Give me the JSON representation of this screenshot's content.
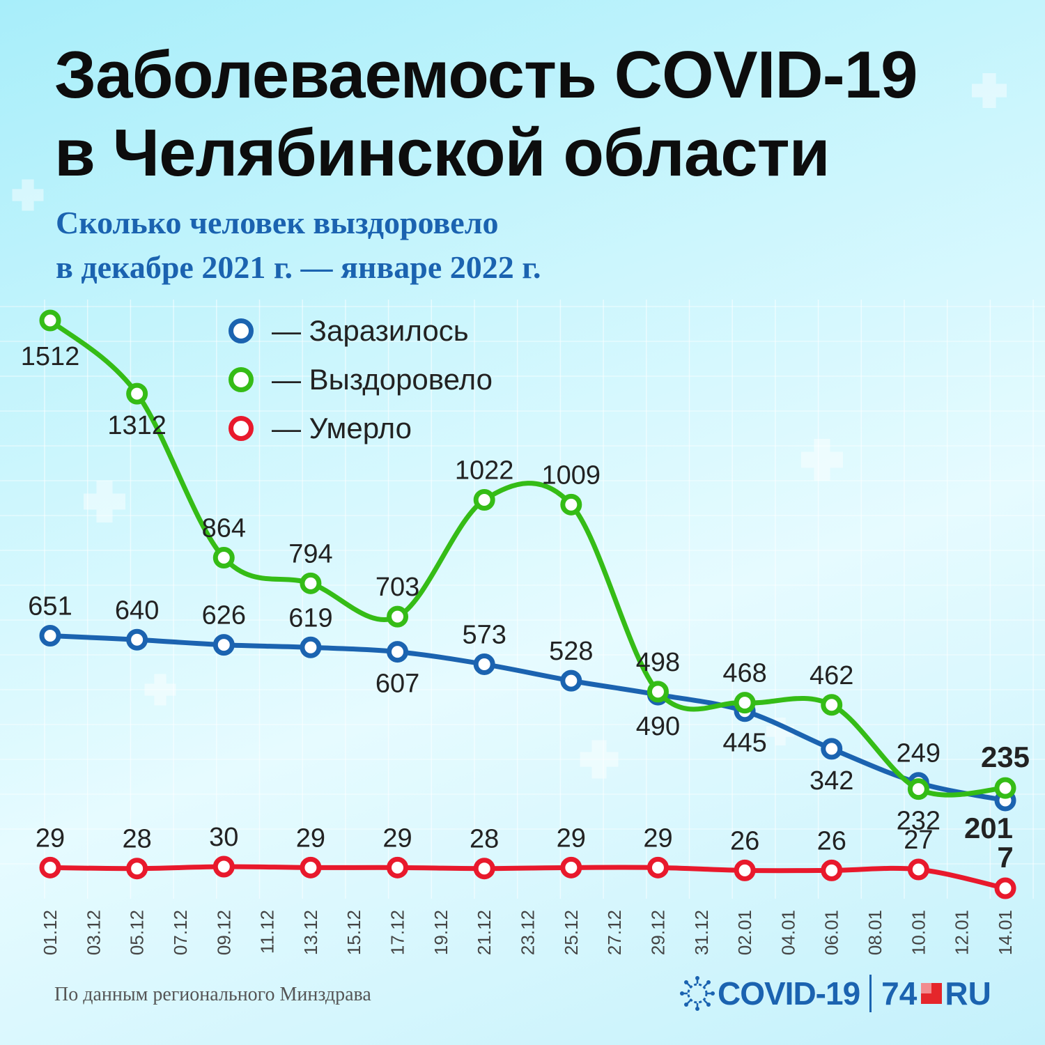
{
  "header": {
    "title_line1": "Заболеваемость COVID-19",
    "title_line2": "в Челябинской области",
    "subtitle_line1": "Сколько человек выздоровело",
    "subtitle_line2": "в декабре 2021 г. — январе 2022 г."
  },
  "footer": {
    "source": "По данным регионального Минздрава",
    "brand_covid": "COVID-19",
    "brand_74": "74",
    "brand_ru": "RU"
  },
  "colors": {
    "infected": "#1b63b0",
    "recovered": "#35bc16",
    "died": "#e8192c"
  },
  "chart_data": {
    "type": "line",
    "x_ticks": [
      "01.12",
      "03.12",
      "05.12",
      "07.12",
      "09.12",
      "11.12",
      "13.12",
      "15.12",
      "17.12",
      "19.12",
      "21.12",
      "23.12",
      "25.12",
      "27.12",
      "29.12",
      "31.12",
      "02.01",
      "04.01",
      "06.01",
      "08.01",
      "10.01",
      "12.01",
      "14.01"
    ],
    "legend_placement": "top-center",
    "series": [
      {
        "key": "infected",
        "name": "— Заразилось",
        "x": [
          "01.12",
          "05.12",
          "09.12",
          "13.12",
          "17.12",
          "21.12",
          "25.12",
          "29.12",
          "02.01",
          "06.01",
          "10.01",
          "14.01"
        ],
        "values": [
          651,
          640,
          626,
          619,
          607,
          573,
          528,
          490,
          445,
          342,
          249,
          201
        ],
        "labels": [
          "651",
          "640",
          "626",
          "619",
          "607",
          "573",
          "528",
          "490",
          "445",
          "342",
          "249",
          "201"
        ]
      },
      {
        "key": "recovered",
        "name": "— Выздоровело",
        "x": [
          "01.12",
          "05.12",
          "09.12",
          "13.12",
          "17.12",
          "21.12",
          "25.12",
          "29.12",
          "02.01",
          "06.01",
          "10.01",
          "14.01"
        ],
        "values": [
          1512,
          1312,
          864,
          794,
          703,
          1022,
          1009,
          498,
          468,
          462,
          232,
          235
        ],
        "labels": [
          "1512",
          "1312",
          "864",
          "794",
          "703",
          "1022",
          "1009",
          "498",
          "468",
          "462",
          "232",
          "235"
        ]
      },
      {
        "key": "died",
        "name": "— Умерло",
        "x": [
          "01.12",
          "05.12",
          "09.12",
          "13.12",
          "17.12",
          "21.12",
          "25.12",
          "29.12",
          "02.01",
          "06.01",
          "10.01",
          "14.01"
        ],
        "values": [
          29,
          28,
          30,
          29,
          29,
          28,
          29,
          29,
          26,
          26,
          27,
          7
        ],
        "labels": [
          "29",
          "28",
          "30",
          "29",
          "29",
          "28",
          "29",
          "29",
          "26",
          "26",
          "27",
          "7"
        ]
      }
    ]
  }
}
